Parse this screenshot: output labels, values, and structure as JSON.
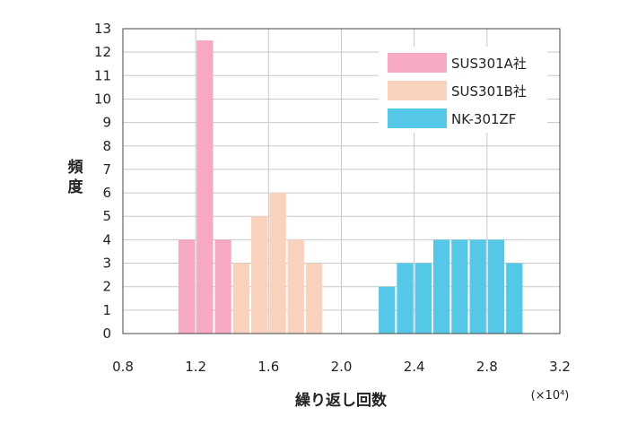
{
  "chart_data": {
    "type": "bar",
    "ylabel_chars": [
      "頻",
      "度"
    ],
    "xlabel": "繰り返し回数",
    "x_multiplier": "(×10⁴)",
    "xlim": [
      0.8,
      3.2
    ],
    "ylim": [
      0,
      13
    ],
    "x_ticks": [
      "0.8",
      "1.2",
      "1.6",
      "2.0",
      "2.4",
      "2.8",
      "3.2"
    ],
    "y_ticks": [
      "0",
      "1",
      "2",
      "3",
      "4",
      "5",
      "6",
      "7",
      "8",
      "9",
      "10",
      "11",
      "12",
      "13"
    ],
    "grid": true,
    "legend_position": "top-right",
    "bin_width": 0.1,
    "series": [
      {
        "name": "SUS301A社",
        "color": "#f7a8c4",
        "bins": [
          {
            "x0": 1.1,
            "x1": 1.2,
            "value": 4
          },
          {
            "x0": 1.2,
            "x1": 1.3,
            "value": 12.5
          },
          {
            "x0": 1.3,
            "x1": 1.4,
            "value": 4
          }
        ]
      },
      {
        "name": "SUS301B社",
        "color": "#f9d2be",
        "bins": [
          {
            "x0": 1.4,
            "x1": 1.5,
            "value": 3
          },
          {
            "x0": 1.5,
            "x1": 1.6,
            "value": 5
          },
          {
            "x0": 1.6,
            "x1": 1.7,
            "value": 6
          },
          {
            "x0": 1.7,
            "x1": 1.8,
            "value": 4
          },
          {
            "x0": 1.8,
            "x1": 1.9,
            "value": 3
          }
        ]
      },
      {
        "name": "NK-301ZF",
        "color": "#55c8e8",
        "bins": [
          {
            "x0": 2.2,
            "x1": 2.3,
            "value": 2
          },
          {
            "x0": 2.3,
            "x1": 2.4,
            "value": 3
          },
          {
            "x0": 2.4,
            "x1": 2.5,
            "value": 3
          },
          {
            "x0": 2.5,
            "x1": 2.6,
            "value": 4
          },
          {
            "x0": 2.6,
            "x1": 2.7,
            "value": 4
          },
          {
            "x0": 2.7,
            "x1": 2.8,
            "value": 4
          },
          {
            "x0": 2.8,
            "x1": 2.9,
            "value": 4
          },
          {
            "x0": 2.9,
            "x1": 3.0,
            "value": 3
          }
        ]
      }
    ]
  }
}
